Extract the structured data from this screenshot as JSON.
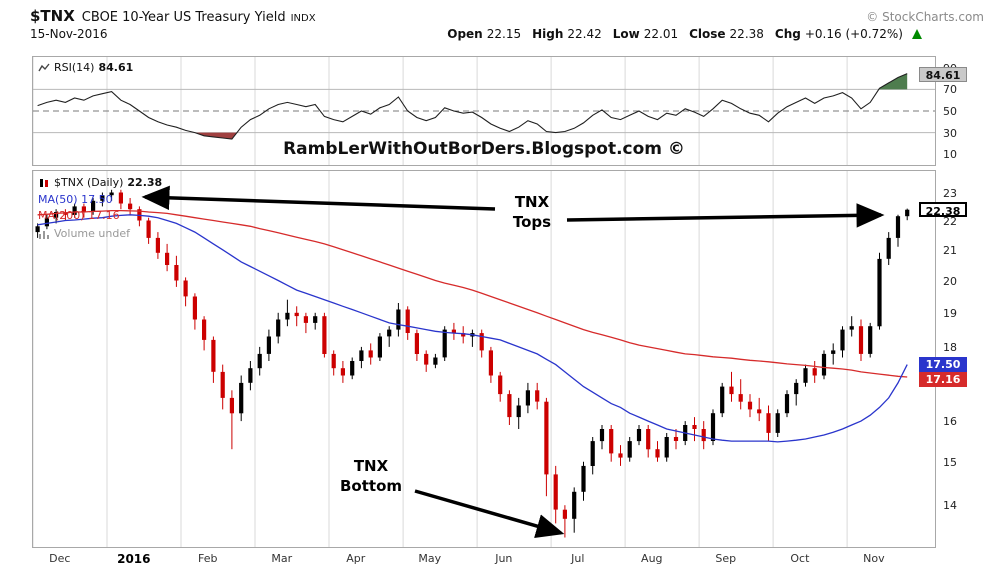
{
  "header": {
    "symbol": "$TNX",
    "name": "CBOE 10-Year US Treasury Yield",
    "exchange": "INDX",
    "copyright": "© StockCharts.com",
    "date": "15-Nov-2016",
    "quote": {
      "open_label": "Open",
      "open_value": "22.15",
      "high_label": "High",
      "high_value": "22.42",
      "low_label": "Low",
      "low_value": "22.01",
      "close_label": "Close",
      "close_value": "22.38",
      "chg_label": "Chg",
      "chg_value": "+0.16 (+0.72%)"
    }
  },
  "rsi_panel": {
    "label": "RSI(14)",
    "value": "84.61",
    "last_box": "84.61"
  },
  "price_panel": {
    "label": "$TNX (Daily)",
    "value": "22.38",
    "ma50_label": "MA(50) 17.50",
    "ma200_label": "MA(200) 17.16",
    "volume_label": "Volume undef",
    "last_price_box": "22.38",
    "ma50_box": "17.50",
    "ma200_box": "17.16"
  },
  "watermark": "RambLerWithOutBorDers.Blogspot.com ©",
  "annotations": {
    "tops_line1": "TNX",
    "tops_line2": "Tops",
    "bottom_line1": "TNX",
    "bottom_line2": "Bottom"
  },
  "chart_data": {
    "type": "candlestick",
    "title": "$TNX CBOE 10-Year US Treasury Yield (Daily) with MA(50), MA(200) overlays and RSI(14) panel",
    "date_range": "Dec 2015 - 15-Nov-2016",
    "scale": "log",
    "price_scale_log": [
      13.1,
      23.8
    ],
    "price_ticks": [
      23,
      22,
      21,
      20,
      19,
      18,
      17,
      16,
      15,
      14
    ],
    "rsi_ticks": [
      90,
      70,
      50,
      30,
      10
    ],
    "rsi_overbought": 70,
    "rsi_oversold": 30,
    "last": {
      "open": 22.15,
      "high": 22.42,
      "low": 22.01,
      "close": 22.38,
      "chg_pts": 0.16,
      "chg_pct": 0.72,
      "rsi": 84.61,
      "ma50": 17.5,
      "ma200": 17.16
    },
    "x_labels": [
      {
        "label": "Dec",
        "start": 0
      },
      {
        "label": "2016",
        "start": 8,
        "bold": true
      },
      {
        "label": "Feb",
        "start": 16
      },
      {
        "label": "Mar",
        "start": 24
      },
      {
        "label": "Apr",
        "start": 32
      },
      {
        "label": "May",
        "start": 40
      },
      {
        "label": "Jun",
        "start": 48
      },
      {
        "label": "Jul",
        "start": 56
      },
      {
        "label": "Aug",
        "start": 64
      },
      {
        "label": "Sep",
        "start": 72
      },
      {
        "label": "Oct",
        "start": 80
      },
      {
        "label": "Nov",
        "start": 88
      }
    ],
    "bars": [
      [
        21.6,
        21.9,
        21.4,
        21.8
      ],
      [
        21.8,
        22.2,
        21.7,
        22.1
      ],
      [
        22.1,
        22.4,
        21.9,
        22.3
      ],
      [
        22.3,
        22.4,
        22.0,
        22.2
      ],
      [
        22.2,
        22.6,
        22.1,
        22.5
      ],
      [
        22.5,
        22.6,
        22.1,
        22.3
      ],
      [
        22.3,
        22.8,
        22.2,
        22.7
      ],
      [
        22.7,
        23.0,
        22.5,
        22.9
      ],
      [
        22.9,
        23.1,
        22.7,
        23.0
      ],
      [
        23.0,
        23.1,
        22.4,
        22.6
      ],
      [
        22.6,
        22.8,
        22.2,
        22.4
      ],
      [
        22.4,
        22.5,
        21.8,
        22.0
      ],
      [
        22.0,
        22.1,
        21.2,
        21.4
      ],
      [
        21.4,
        21.6,
        20.7,
        20.9
      ],
      [
        20.9,
        21.2,
        20.3,
        20.5
      ],
      [
        20.5,
        20.8,
        19.8,
        20.0
      ],
      [
        20.0,
        20.1,
        19.2,
        19.5
      ],
      [
        19.5,
        19.6,
        18.5,
        18.8
      ],
      [
        18.8,
        18.9,
        17.9,
        18.2
      ],
      [
        18.2,
        18.3,
        17.0,
        17.3
      ],
      [
        17.3,
        17.5,
        16.3,
        16.6
      ],
      [
        16.6,
        16.8,
        15.3,
        16.2
      ],
      [
        16.2,
        17.2,
        16.0,
        17.0
      ],
      [
        17.0,
        17.6,
        16.8,
        17.4
      ],
      [
        17.4,
        18.0,
        17.2,
        17.8
      ],
      [
        17.8,
        18.5,
        17.6,
        18.3
      ],
      [
        18.3,
        19.0,
        18.1,
        18.8
      ],
      [
        18.8,
        19.4,
        18.6,
        19.0
      ],
      [
        19.0,
        19.2,
        18.6,
        18.9
      ],
      [
        18.9,
        19.0,
        18.4,
        18.7
      ],
      [
        18.7,
        19.0,
        18.5,
        18.9
      ],
      [
        18.9,
        19.0,
        17.7,
        17.8
      ],
      [
        17.8,
        17.9,
        17.2,
        17.4
      ],
      [
        17.4,
        17.6,
        17.0,
        17.2
      ],
      [
        17.2,
        17.7,
        17.1,
        17.6
      ],
      [
        17.6,
        18.0,
        17.4,
        17.9
      ],
      [
        17.9,
        18.1,
        17.5,
        17.7
      ],
      [
        17.7,
        18.4,
        17.6,
        18.3
      ],
      [
        18.3,
        18.6,
        18.0,
        18.5
      ],
      [
        18.5,
        19.3,
        18.3,
        19.1
      ],
      [
        19.1,
        19.2,
        18.2,
        18.4
      ],
      [
        18.4,
        18.5,
        17.6,
        17.8
      ],
      [
        17.8,
        17.9,
        17.3,
        17.5
      ],
      [
        17.5,
        17.8,
        17.4,
        17.7
      ],
      [
        17.7,
        18.6,
        17.6,
        18.5
      ],
      [
        18.5,
        18.7,
        18.2,
        18.4
      ],
      [
        18.4,
        18.6,
        18.1,
        18.3
      ],
      [
        18.3,
        18.5,
        18.0,
        18.4
      ],
      [
        18.4,
        18.5,
        17.7,
        17.9
      ],
      [
        17.9,
        18.0,
        17.0,
        17.2
      ],
      [
        17.2,
        17.3,
        16.5,
        16.7
      ],
      [
        16.7,
        16.8,
        15.9,
        16.1
      ],
      [
        16.1,
        16.6,
        15.8,
        16.4
      ],
      [
        16.4,
        17.0,
        16.2,
        16.8
      ],
      [
        16.8,
        17.0,
        16.3,
        16.5
      ],
      [
        16.5,
        16.6,
        14.2,
        14.7
      ],
      [
        14.7,
        14.9,
        13.6,
        13.9
      ],
      [
        13.9,
        14.0,
        13.3,
        13.7
      ],
      [
        13.7,
        14.4,
        13.4,
        14.3
      ],
      [
        14.3,
        15.0,
        14.1,
        14.9
      ],
      [
        14.9,
        15.6,
        14.7,
        15.5
      ],
      [
        15.5,
        15.9,
        15.3,
        15.8
      ],
      [
        15.8,
        15.9,
        15.0,
        15.2
      ],
      [
        15.2,
        15.4,
        14.9,
        15.1
      ],
      [
        15.1,
        15.6,
        15.0,
        15.5
      ],
      [
        15.5,
        15.9,
        15.4,
        15.8
      ],
      [
        15.8,
        15.9,
        15.1,
        15.3
      ],
      [
        15.3,
        15.5,
        15.0,
        15.1
      ],
      [
        15.1,
        15.7,
        15.0,
        15.6
      ],
      [
        15.6,
        15.8,
        15.3,
        15.5
      ],
      [
        15.5,
        16.0,
        15.4,
        15.9
      ],
      [
        15.9,
        16.1,
        15.5,
        15.8
      ],
      [
        15.8,
        16.0,
        15.3,
        15.5
      ],
      [
        15.5,
        16.3,
        15.4,
        16.2
      ],
      [
        16.2,
        17.0,
        16.1,
        16.9
      ],
      [
        16.9,
        17.3,
        16.5,
        16.7
      ],
      [
        16.7,
        17.1,
        16.3,
        16.5
      ],
      [
        16.5,
        16.7,
        16.1,
        16.3
      ],
      [
        16.3,
        16.6,
        16.0,
        16.2
      ],
      [
        16.2,
        16.4,
        15.5,
        15.7
      ],
      [
        15.7,
        16.3,
        15.6,
        16.2
      ],
      [
        16.2,
        16.8,
        16.1,
        16.7
      ],
      [
        16.7,
        17.1,
        16.4,
        17.0
      ],
      [
        17.0,
        17.5,
        16.9,
        17.4
      ],
      [
        17.4,
        17.6,
        17.0,
        17.2
      ],
      [
        17.2,
        17.9,
        17.1,
        17.8
      ],
      [
        17.8,
        18.1,
        17.5,
        17.9
      ],
      [
        17.9,
        18.6,
        17.7,
        18.5
      ],
      [
        18.5,
        18.9,
        18.3,
        18.6
      ],
      [
        18.6,
        18.8,
        17.6,
        17.8
      ],
      [
        17.8,
        18.7,
        17.7,
        18.6
      ],
      [
        18.6,
        20.9,
        18.5,
        20.7
      ],
      [
        20.7,
        21.6,
        20.5,
        21.4
      ],
      [
        21.4,
        22.2,
        21.1,
        22.15
      ],
      [
        22.15,
        22.42,
        22.01,
        22.38
      ]
    ],
    "ma50": [
      21.85,
      21.9,
      21.95,
      22.0,
      22.02,
      22.05,
      22.08,
      22.1,
      22.15,
      22.18,
      22.2,
      22.18,
      22.15,
      22.1,
      22.0,
      21.9,
      21.75,
      21.6,
      21.4,
      21.2,
      21.0,
      20.8,
      20.6,
      20.45,
      20.3,
      20.15,
      20.0,
      19.85,
      19.7,
      19.6,
      19.5,
      19.4,
      19.3,
      19.2,
      19.1,
      19.0,
      18.9,
      18.8,
      18.7,
      18.65,
      18.6,
      18.55,
      18.5,
      18.45,
      18.42,
      18.4,
      18.38,
      18.35,
      18.3,
      18.25,
      18.2,
      18.1,
      18.0,
      17.9,
      17.8,
      17.65,
      17.5,
      17.3,
      17.1,
      16.9,
      16.75,
      16.6,
      16.45,
      16.35,
      16.2,
      16.1,
      16.0,
      15.9,
      15.8,
      15.75,
      15.7,
      15.65,
      15.6,
      15.55,
      15.52,
      15.5,
      15.5,
      15.5,
      15.5,
      15.5,
      15.48,
      15.5,
      15.52,
      15.55,
      15.6,
      15.65,
      15.72,
      15.8,
      15.9,
      16.0,
      16.15,
      16.35,
      16.6,
      17.0,
      17.5
    ],
    "ma200": [
      22.2,
      22.22,
      22.25,
      22.27,
      22.3,
      22.3,
      22.32,
      22.33,
      22.35,
      22.35,
      22.34,
      22.33,
      22.3,
      22.28,
      22.25,
      22.2,
      22.15,
      22.1,
      22.05,
      22.0,
      21.95,
      21.9,
      21.85,
      21.8,
      21.72,
      21.65,
      21.58,
      21.5,
      21.42,
      21.35,
      21.28,
      21.2,
      21.1,
      21.0,
      20.9,
      20.8,
      20.7,
      20.6,
      20.5,
      20.4,
      20.3,
      20.2,
      20.1,
      20.0,
      19.92,
      19.85,
      19.78,
      19.7,
      19.6,
      19.5,
      19.4,
      19.3,
      19.2,
      19.1,
      19.0,
      18.9,
      18.8,
      18.7,
      18.6,
      18.5,
      18.42,
      18.35,
      18.28,
      18.2,
      18.12,
      18.05,
      18.0,
      17.95,
      17.9,
      17.85,
      17.8,
      17.78,
      17.75,
      17.72,
      17.7,
      17.68,
      17.65,
      17.62,
      17.6,
      17.58,
      17.55,
      17.52,
      17.5,
      17.48,
      17.45,
      17.42,
      17.4,
      17.38,
      17.35,
      17.3,
      17.27,
      17.24,
      17.21,
      17.18,
      17.16
    ],
    "rsi": [
      55,
      58,
      60,
      58,
      62,
      60,
      64,
      66,
      68,
      60,
      56,
      50,
      44,
      40,
      37,
      35,
      32,
      30,
      27,
      26,
      25,
      24,
      35,
      42,
      46,
      52,
      56,
      58,
      56,
      54,
      56,
      45,
      42,
      40,
      45,
      50,
      47,
      53,
      56,
      63,
      50,
      44,
      41,
      44,
      53,
      50,
      48,
      49,
      44,
      38,
      34,
      31,
      35,
      41,
      38,
      31,
      30,
      31,
      34,
      39,
      46,
      51,
      44,
      42,
      46,
      50,
      45,
      42,
      48,
      46,
      52,
      49,
      45,
      52,
      60,
      57,
      52,
      48,
      46,
      40,
      48,
      54,
      58,
      62,
      57,
      62,
      64,
      67,
      62,
      52,
      58,
      71,
      76,
      81,
      84.61
    ],
    "colors": {
      "up": "#000000",
      "down": "#cc0000",
      "ma50": "#2a35cc",
      "ma200": "#d62b2b",
      "rsi": "#202020",
      "grid": "#d9d9d9",
      "ref_line": "#b8b8b8",
      "mid_line": "#7a7a7a",
      "overbought_fill": "#4e7d4e",
      "oversold_fill": "#a04040",
      "chg_arrow": "#008a00"
    }
  }
}
